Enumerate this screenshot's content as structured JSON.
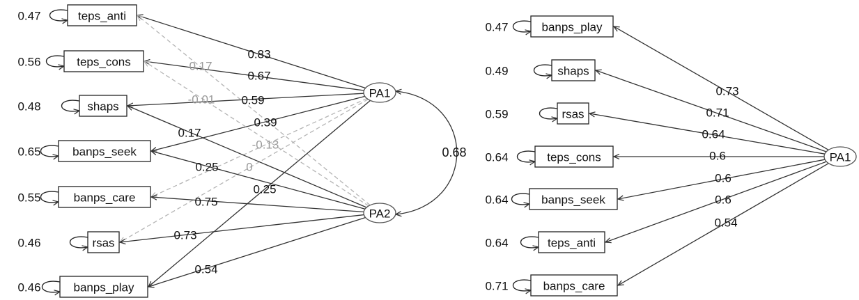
{
  "colors": {
    "strong_path": "#333333",
    "weak_path": "#b4b4b4",
    "node_stroke": "#222222"
  },
  "left_model": {
    "factors": [
      {
        "id": "PA1",
        "label": "PA1"
      },
      {
        "id": "PA2",
        "label": "PA2"
      }
    ],
    "indicators": [
      {
        "label": "teps_anti",
        "residual": "0.47"
      },
      {
        "label": "teps_cons",
        "residual": "0.56"
      },
      {
        "label": "shaps",
        "residual": "0.48"
      },
      {
        "label": "banps_seek",
        "residual": "0.65"
      },
      {
        "label": "banps_care",
        "residual": "0.55"
      },
      {
        "label": "rsas",
        "residual": "0.46"
      },
      {
        "label": "banps_play",
        "residual": "0.46"
      }
    ],
    "loadings": [
      {
        "from": "PA1",
        "to": 0,
        "value": "0.83",
        "weak": false
      },
      {
        "from": "PA1",
        "to": 1,
        "value": "0.67",
        "weak": false
      },
      {
        "from": "PA1",
        "to": 2,
        "value": "0.59",
        "weak": false
      },
      {
        "from": "PA1",
        "to": 3,
        "value": "0.39",
        "weak": false
      },
      {
        "from": "PA1",
        "to": 4,
        "value": "-0.13",
        "weak": true
      },
      {
        "from": "PA1",
        "to": 5,
        "value": "0",
        "weak": true
      },
      {
        "from": "PA1",
        "to": 6,
        "value": "0.25",
        "weak": false
      },
      {
        "from": "PA2",
        "to": 0,
        "value": "0.17",
        "weak": true
      },
      {
        "from": "PA2",
        "to": 1,
        "value": "-0.01",
        "weak": true
      },
      {
        "from": "PA2",
        "to": 2,
        "value": "0.17",
        "weak": false
      },
      {
        "from": "PA2",
        "to": 3,
        "value": "0.25",
        "weak": false
      },
      {
        "from": "PA2",
        "to": 4,
        "value": "0.75",
        "weak": false
      },
      {
        "from": "PA2",
        "to": 5,
        "value": "0.73",
        "weak": false
      },
      {
        "from": "PA2",
        "to": 6,
        "value": "0.54",
        "weak": false
      }
    ],
    "factor_correlation": {
      "value": "0.68"
    }
  },
  "right_model": {
    "factor": {
      "id": "PA1",
      "label": "PA1"
    },
    "indicators": [
      {
        "label": "banps_play",
        "residual": "0.47",
        "loading": "0.73"
      },
      {
        "label": "shaps",
        "residual": "0.49",
        "loading": "0.71"
      },
      {
        "label": "rsas",
        "residual": "0.59",
        "loading": "0.64"
      },
      {
        "label": "teps_cons",
        "residual": "0.64",
        "loading": "0.6"
      },
      {
        "label": "banps_seek",
        "residual": "0.64",
        "loading": "0.6"
      },
      {
        "label": "teps_anti",
        "residual": "0.64",
        "loading": "0.6"
      },
      {
        "label": "banps_care",
        "residual": "0.71",
        "loading": "0.54"
      }
    ]
  }
}
